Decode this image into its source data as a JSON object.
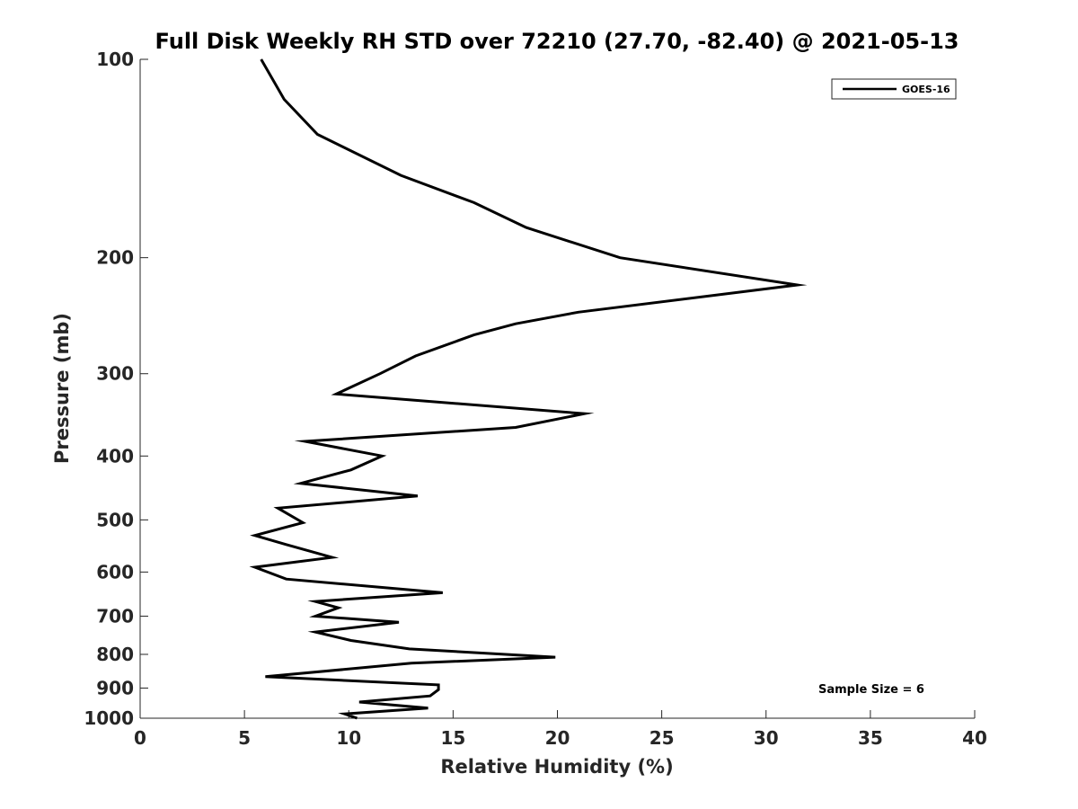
{
  "chart_data": {
    "type": "line",
    "title": "Full Disk Weekly RH STD over 72210 (27.70, -82.40) @ 2021-05-13",
    "xlabel": "Relative Humidity (%)",
    "ylabel": "Pressure (mb)",
    "xlim": [
      0,
      40
    ],
    "ylim": [
      100,
      1000
    ],
    "yscale": "log",
    "y_reversed": true,
    "grid": false,
    "x_ticks": [
      0,
      5,
      10,
      15,
      20,
      25,
      30,
      35,
      40
    ],
    "x_tick_labels": [
      "0",
      "5",
      "10",
      "15",
      "20",
      "25",
      "30",
      "35",
      "40"
    ],
    "y_ticks": [
      100,
      200,
      300,
      400,
      500,
      600,
      700,
      800,
      900,
      1000
    ],
    "y_tick_labels": [
      "100",
      "200",
      "300",
      "400",
      "500",
      "600",
      "700",
      "800",
      "900",
      "1000"
    ],
    "legend": {
      "position": "top-right",
      "entries": [
        "GOES-16"
      ]
    },
    "annotation": "Sample Size = 6",
    "series": [
      {
        "name": "GOES-16",
        "color": "#000000",
        "x": [
          5.8,
          6.9,
          8.5,
          12.5,
          16.0,
          18.5,
          23.0,
          31.5,
          21.0,
          18.0,
          16.0,
          13.2,
          11.5,
          9.4,
          21.3,
          18.0,
          7.9,
          11.6,
          10.1,
          7.7,
          13.3,
          6.6,
          7.8,
          5.5,
          7.0,
          9.2,
          5.5,
          7.0,
          14.5,
          8.4,
          9.5,
          8.4,
          12.4,
          8.4,
          10.1,
          12.9,
          19.9,
          13.0,
          6.0,
          14.3,
          14.3,
          13.9,
          10.5,
          13.8,
          9.8,
          10.4
        ],
        "y": [
          100,
          115,
          130,
          150,
          165,
          180,
          200,
          220,
          242,
          252,
          262,
          282,
          300,
          322,
          345,
          362,
          380,
          400,
          420,
          440,
          460,
          480,
          505,
          528,
          545,
          570,
          590,
          615,
          645,
          665,
          680,
          700,
          715,
          740,
          762,
          785,
          808,
          825,
          865,
          890,
          905,
          925,
          945,
          965,
          985,
          1000
        ]
      }
    ]
  }
}
